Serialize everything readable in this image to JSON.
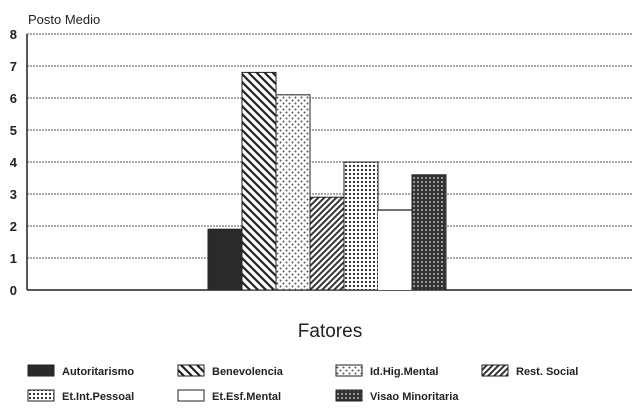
{
  "chart_data": {
    "type": "bar",
    "ylabel": "Posto Medio",
    "xlabel": "Fatores",
    "ylim": [
      0,
      8
    ],
    "yticks": [
      "0",
      "1",
      "2",
      "3",
      "4",
      "5",
      "6",
      "7",
      "8"
    ],
    "grid": true,
    "legend_position": "bottom",
    "series": [
      {
        "name": "Autoritarismo",
        "value": 1.9,
        "pattern": "solid"
      },
      {
        "name": "Benevolencia",
        "value": 6.8,
        "pattern": "backslash"
      },
      {
        "name": "Id.Hig.Mental",
        "value": 6.1,
        "pattern": "dots-light"
      },
      {
        "name": "Rest. Social",
        "value": 2.9,
        "pattern": "slash"
      },
      {
        "name": "Et.Int.Pessoal",
        "value": 4.0,
        "pattern": "dots-dense"
      },
      {
        "name": "Et.Esf.Mental",
        "value": 2.5,
        "pattern": "empty"
      },
      {
        "name": "Visao Minoritaria",
        "value": 3.6,
        "pattern": "cross"
      }
    ]
  }
}
